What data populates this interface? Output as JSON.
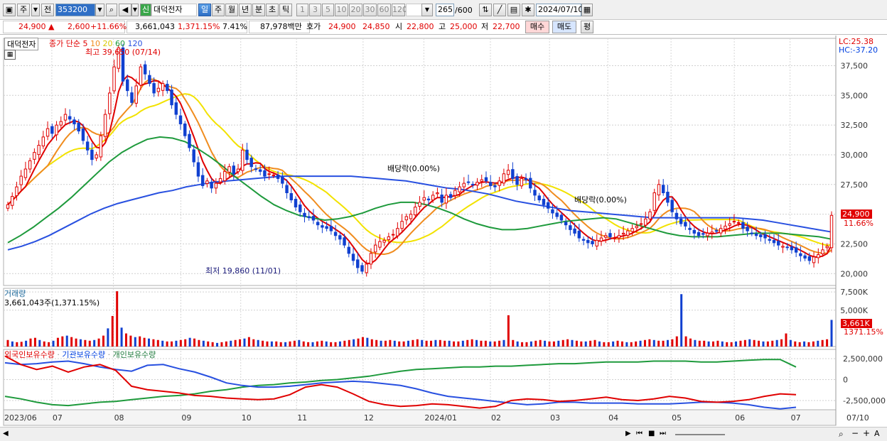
{
  "toolbar": {
    "period_main": "주",
    "prev_label": "전",
    "code": "353200",
    "credit_badge": "신",
    "stock_name": "대덕전자",
    "periods": [
      "일",
      "주",
      "월",
      "년",
      "분",
      "초",
      "틱"
    ],
    "selected_period": "일",
    "intervals": [
      "1",
      "3",
      "5",
      "10",
      "20",
      "30",
      "60",
      "120"
    ],
    "count": "265",
    "count_total": "/600",
    "date": "2024/07/10"
  },
  "quote": {
    "price": "24,900",
    "change": "2,600",
    "change_pct": "+11.66%",
    "volume": "3,661,043",
    "volume_ratio": "1,371.15%",
    "turnover_rate": "7.41%",
    "amount": "87,978백만",
    "ask_label": "호가",
    "ask": "24,900",
    "bid": "24,850",
    "open_label": "시",
    "open": "22,800",
    "high_label": "고",
    "high": "25,000",
    "low_label": "저",
    "low": "22,700",
    "buy_btn": "매수",
    "sell_btn": "매도",
    "eval_btn": "평"
  },
  "price_panel": {
    "name_tag": "대덕전자",
    "ma_legend_prefix": "종가 단순",
    "ma_periods": [
      "5",
      "10",
      "20",
      "60",
      "120"
    ],
    "high_annot": "최고 39,650 (07/14)",
    "low_annot": "최저 19,860 (11/01)",
    "div_annot_1": "배당락(0.00%)",
    "div_annot_2": "배당락(0.00%)",
    "lc": "LC:25.38",
    "hc": "HC:-37.20",
    "last_price_tag": "24,900",
    "last_pct_tag": "11.66%"
  },
  "volume_panel": {
    "title": "거래량",
    "summary": "3,661,043주(1,371.15%)",
    "last_tag": "3,661K",
    "last_pct": "1371.15%"
  },
  "holdings_panel": {
    "series_names": [
      "외국인보유수량",
      "기관보유수량",
      "개인보유수량"
    ]
  },
  "chart_data": [
    {
      "type": "line",
      "title": "대덕전자",
      "x_labels": [
        "2023/06",
        "07",
        "08",
        "09",
        "10",
        "11",
        "12",
        "2024/01",
        "02",
        "03",
        "04",
        "05",
        "06",
        "07",
        "07/10"
      ],
      "y_ticks": [
        20000,
        22500,
        25000,
        27500,
        30000,
        32500,
        35000,
        37500
      ],
      "ylim": [
        19000,
        39800
      ],
      "close": [
        25800,
        26500,
        27300,
        28200,
        28800,
        29500,
        30200,
        30800,
        31500,
        32200,
        31800,
        32500,
        32800,
        33400,
        33000,
        32600,
        32000,
        31200,
        30400,
        29600,
        30000,
        31600,
        33400,
        35200,
        37400,
        39000,
        36200,
        35400,
        34400,
        35800,
        37400,
        36800,
        36000,
        35200,
        35600,
        36000,
        35400,
        34200,
        33400,
        32600,
        31600,
        30600,
        29400,
        28200,
        27400,
        27800,
        27200,
        27600,
        28000,
        28600,
        29000,
        28400,
        28800,
        30400,
        29600,
        29000,
        28800,
        28600,
        28200,
        28400,
        28300,
        28000,
        27600,
        26800,
        26200,
        25600,
        25200,
        24800,
        24700,
        24500,
        24100,
        23900,
        23800,
        23600,
        23200,
        22900,
        22400,
        21700,
        21100,
        20500,
        20200,
        20800,
        21700,
        22400,
        22700,
        22800,
        23100,
        23300,
        23800,
        24400,
        24800,
        25000,
        25600,
        26000,
        26400,
        26200,
        26600,
        26800,
        26000,
        26600,
        26400,
        27000,
        27300,
        27600,
        27700,
        27500,
        27700,
        27900,
        27800,
        27400,
        27300,
        27800,
        28400,
        28700,
        28000,
        27500,
        28000,
        27900,
        27200,
        26600,
        26200,
        25800,
        25500,
        25100,
        24800,
        24500,
        24100,
        23700,
        23400,
        23000,
        22800,
        22600,
        22500,
        22800,
        23000,
        23200,
        23100,
        23000,
        23200,
        23400,
        23600,
        23800,
        24000,
        24200,
        24600,
        25200,
        26800,
        27500,
        26800,
        26000,
        25200,
        24600,
        24200,
        24000,
        23700,
        23400,
        23200,
        23300,
        23400,
        23500,
        23600,
        23800,
        24000,
        24200,
        24400,
        24300,
        23800,
        23600,
        23400,
        23200,
        23100,
        23000,
        22800,
        22600,
        22400,
        22300,
        22200,
        22000,
        21800,
        21500,
        21300,
        21100,
        21400,
        21600,
        22000,
        22300,
        24900
      ],
      "ma5_label": "5",
      "ma10_label": "10",
      "ma20_label": "20",
      "ma60_label": "60",
      "ma120_label": "120",
      "ma_colors": {
        "ma5": "#e00000",
        "ma10": "#f08c1e",
        "ma20": "#f2e200",
        "ma60": "#1e9a3c",
        "ma120": "#2850e0"
      },
      "ma60": [
        22600,
        23200,
        23900,
        24700,
        25500,
        26400,
        27400,
        28400,
        29400,
        30200,
        30800,
        31300,
        31500,
        31400,
        31100,
        30500,
        29800,
        29000,
        28100,
        27300,
        26500,
        25800,
        25300,
        24900,
        24700,
        24500,
        24600,
        24800,
        25100,
        25500,
        25800,
        26000,
        26000,
        25800,
        25500,
        25100,
        24600,
        24200,
        23900,
        23700,
        23700,
        23800,
        24000,
        24200,
        24400,
        24500,
        24600,
        24700,
        24600,
        24300,
        24000,
        23700,
        23400,
        23200,
        23100,
        23100,
        23100,
        23200,
        23300,
        23400,
        23400,
        23400,
        23300,
        23200,
        23100,
        22900
      ],
      "ma120": [
        22000,
        22300,
        22700,
        23200,
        23800,
        24400,
        25000,
        25500,
        25900,
        26200,
        26500,
        26800,
        27000,
        27300,
        27500,
        27700,
        27800,
        27900,
        28000,
        28100,
        28200,
        28200,
        28200,
        28200,
        28200,
        28200,
        28100,
        28000,
        27900,
        27800,
        27600,
        27400,
        27200,
        27100,
        26900,
        26700,
        26400,
        26100,
        25900,
        25700,
        25500,
        25300,
        25200,
        25100,
        25000,
        24900,
        24800,
        24700,
        24700,
        24700,
        24700,
        24700,
        24700,
        24700,
        24600,
        24500,
        24300,
        24100,
        23900,
        23700,
        23500
      ]
    },
    {
      "type": "bar",
      "title": "거래량",
      "y_ticks": [
        "7,500K",
        "5,000K"
      ],
      "ylim": [
        0,
        8000
      ],
      "volume_k": [
        900,
        700,
        600,
        650,
        800,
        1100,
        1200,
        900,
        700,
        600,
        800,
        1200,
        1400,
        1500,
        1300,
        1100,
        1000,
        900,
        800,
        900,
        1100,
        1500,
        2500,
        4200,
        7600,
        2600,
        1800,
        1500,
        1300,
        1400,
        1200,
        1100,
        1000,
        900,
        800,
        700,
        700,
        800,
        900,
        1000,
        1200,
        1100,
        900,
        800,
        700,
        600,
        500,
        600,
        700,
        800,
        900,
        1000,
        1100,
        1300,
        1000,
        900,
        800,
        700,
        700,
        700,
        600,
        600,
        700,
        800,
        900,
        700,
        600,
        600,
        700,
        800,
        700,
        600,
        600,
        700,
        800,
        900,
        1000,
        1100,
        1300,
        1200,
        1000,
        900,
        800,
        800,
        900,
        800,
        700,
        700,
        800,
        900,
        1000,
        900,
        800,
        800,
        900,
        900,
        800,
        800,
        700,
        700,
        800,
        900,
        1000,
        900,
        800,
        800,
        700,
        700,
        800,
        900,
        4300,
        900,
        700,
        600,
        600,
        700,
        800,
        900,
        800,
        700,
        700,
        800,
        900,
        1000,
        900,
        800,
        700,
        700,
        800,
        900,
        700,
        600,
        600,
        700,
        800,
        700,
        600,
        600,
        700,
        800,
        900,
        1000,
        900,
        800,
        800,
        900,
        1000,
        1400,
        7200,
        1400,
        1100,
        900,
        800,
        800,
        700,
        700,
        800,
        700,
        600,
        600,
        700,
        800,
        900,
        1000,
        900,
        800,
        700,
        700,
        800,
        900,
        1000,
        1800,
        900,
        700,
        600,
        700,
        600,
        700,
        800,
        900,
        1000,
        3661
      ]
    },
    {
      "type": "line",
      "title": "보유수량",
      "y_ticks": [
        "2,500,000",
        "0",
        "-2,500,000"
      ],
      "ylim": [
        -3600000,
        3600000
      ],
      "series": [
        {
          "name": "외국인보유수량",
          "color": "#e00000"
        },
        {
          "name": "기관보유수량",
          "color": "#2850e0"
        },
        {
          "name": "개인보유수량",
          "color": "#1e9a3c"
        }
      ]
    }
  ]
}
